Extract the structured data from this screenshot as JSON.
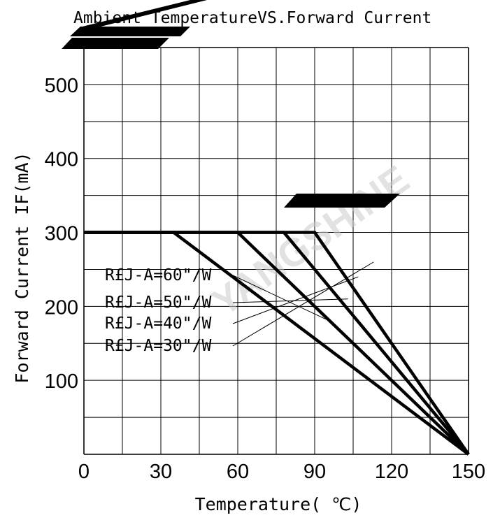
{
  "chart_data": {
    "type": "line",
    "title": "Ambient TemperatureVS.Forward Current",
    "xlabel": "Temperature( ℃)",
    "ylabel": "Forward Current IF(mA)",
    "xlim": [
      0,
      150
    ],
    "ylim": [
      0,
      550
    ],
    "x_ticks": [
      "0",
      "30",
      "60",
      "90",
      "120",
      "150"
    ],
    "y_ticks": [
      "100",
      "200",
      "300",
      "400",
      "500"
    ],
    "grid": true,
    "series": [
      {
        "name": "R£J-A=60\"/W",
        "x": [
          0,
          35,
          150
        ],
        "y": [
          300,
          300,
          0
        ]
      },
      {
        "name": "R£J-A=50\"/W",
        "x": [
          0,
          60,
          150
        ],
        "y": [
          300,
          300,
          0
        ]
      },
      {
        "name": "R£J-A=40\"/W",
        "x": [
          0,
          78,
          150
        ],
        "y": [
          300,
          300,
          0
        ]
      },
      {
        "name": "R£J-A=30\"/W",
        "x": [
          0,
          90,
          150
        ],
        "y": [
          300,
          300,
          0
        ]
      }
    ],
    "legend_placement": "center-left"
  },
  "watermark": "YANGSHINE",
  "colors": {
    "line": "#000000",
    "grid": "#000000",
    "watermark": "#cccccc"
  }
}
